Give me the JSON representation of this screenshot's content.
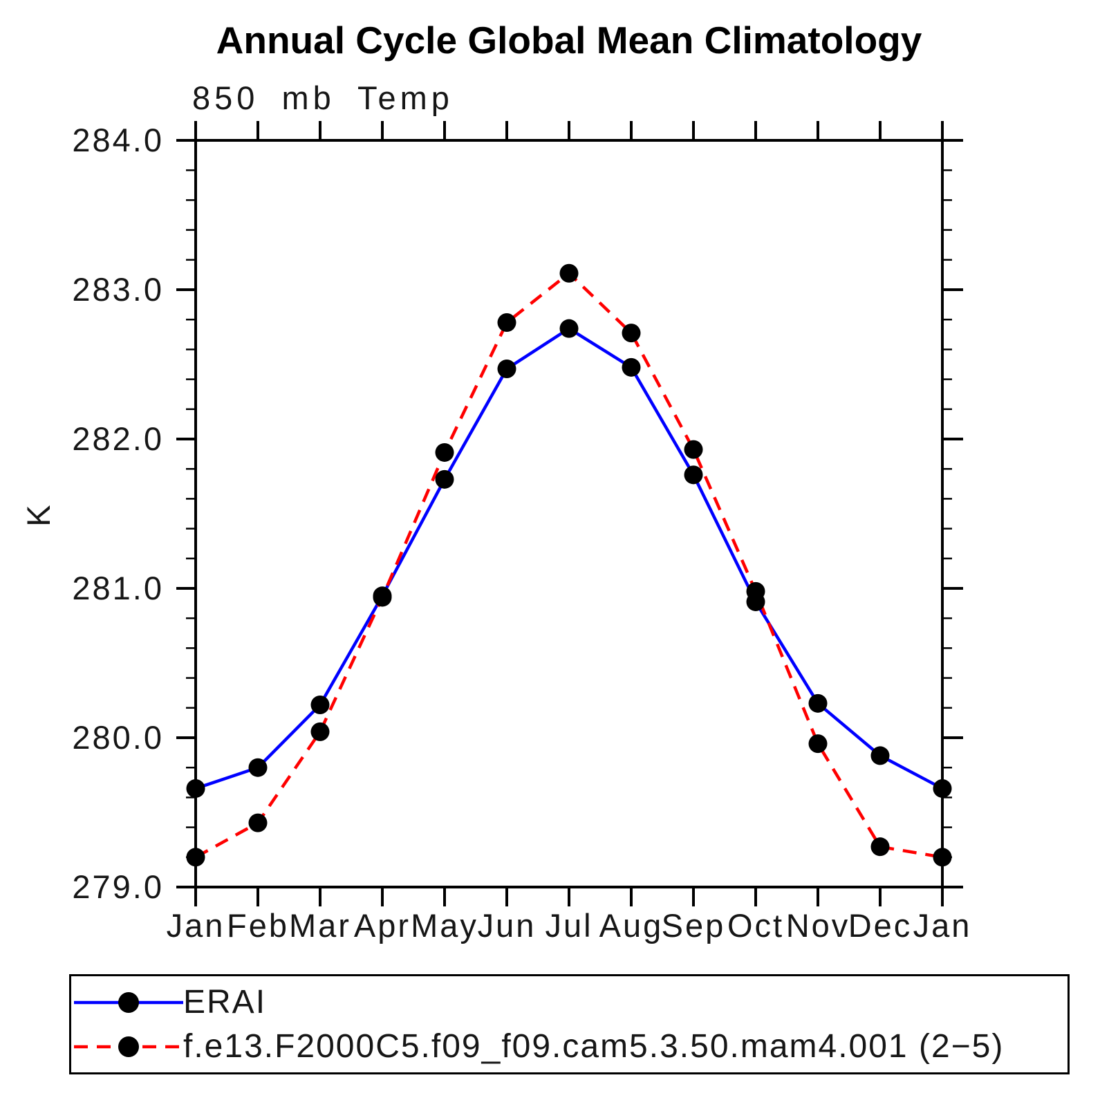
{
  "page": {
    "background": "#ffffff"
  },
  "chart_data": {
    "type": "line",
    "title": "Annual Cycle Global Mean Climatology",
    "subtitle": "850 mb Temp",
    "xlabel": "",
    "ylabel": "K",
    "categories": [
      "Jan",
      "Feb",
      "Mar",
      "Apr",
      "May",
      "Jun",
      "Jul",
      "Aug",
      "Sep",
      "Oct",
      "Nov",
      "Dec",
      "Jan"
    ],
    "ylim": [
      279.0,
      284.0
    ],
    "y_major_step": 1.0,
    "y_minor_step": 0.2,
    "y_tick_labels": [
      "279.0",
      "280.0",
      "281.0",
      "282.0",
      "283.0",
      "284.0"
    ],
    "grid": false,
    "legend_position": "bottom",
    "axis_color": "#000000",
    "marker_color": "#000000",
    "series": [
      {
        "name": "ERAI",
        "color": "#0000ff",
        "style": "solid",
        "marker": "dot",
        "values": [
          279.66,
          279.8,
          280.22,
          280.95,
          281.73,
          282.47,
          282.74,
          282.48,
          281.76,
          280.91,
          280.23,
          279.88,
          279.66
        ]
      },
      {
        "name": "f.e13.F2000C5.f09_f09.cam5.3.50.mam4.001 (2−5)",
        "color": "#ff0000",
        "style": "dashed",
        "marker": "dot",
        "values": [
          279.2,
          279.43,
          280.04,
          280.94,
          281.91,
          282.78,
          283.11,
          282.71,
          281.93,
          280.98,
          279.96,
          279.27,
          279.2
        ]
      }
    ]
  }
}
